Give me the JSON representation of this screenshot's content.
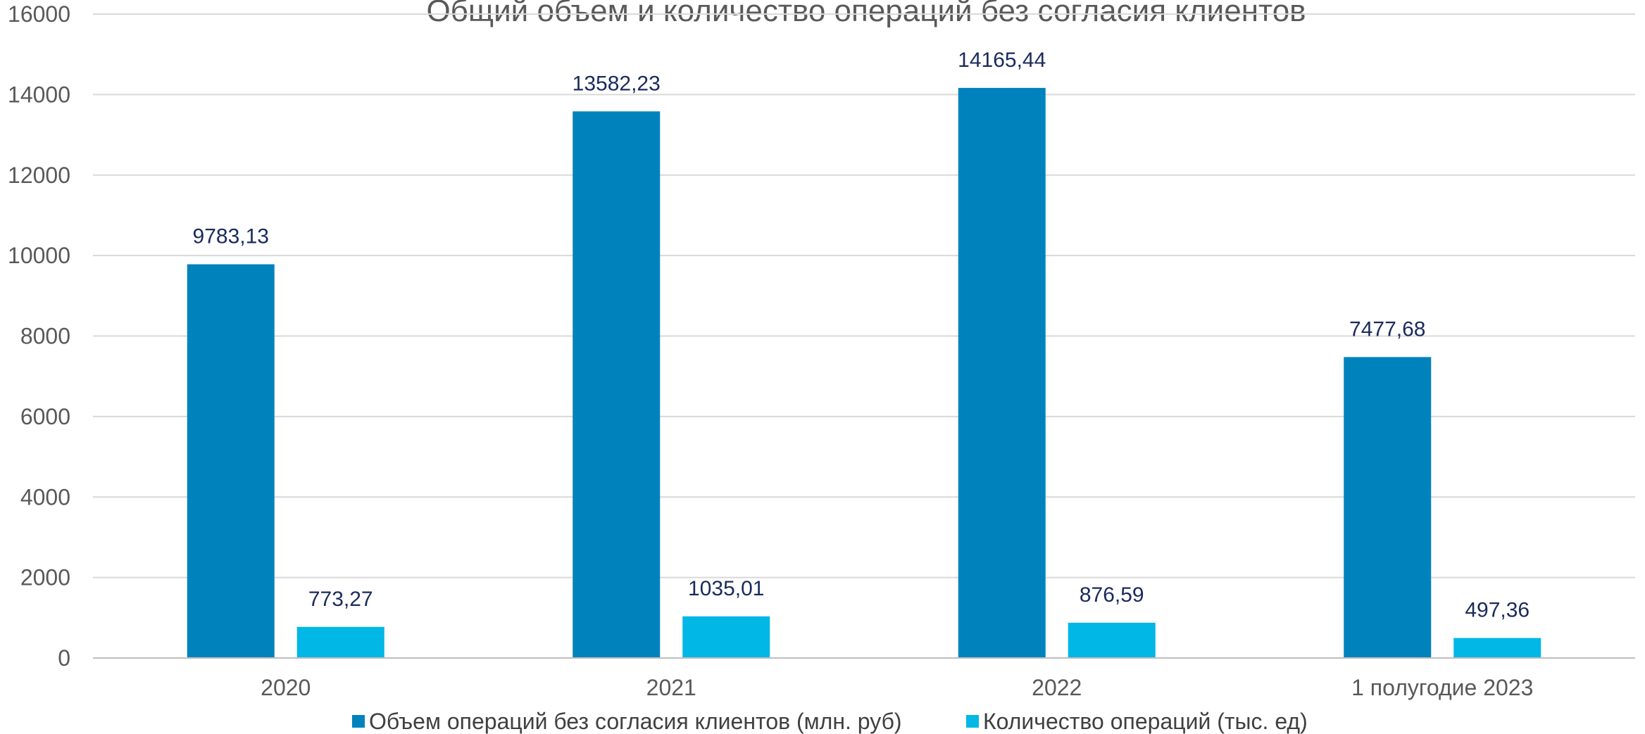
{
  "chart_data": {
    "type": "bar",
    "title": "Общий объем и количество операций без согласия клиентов",
    "categories": [
      "2020",
      "2021",
      "2022",
      "1 полугодие 2023"
    ],
    "series": [
      {
        "name": "Объем операций без согласия клиентов (млн. руб)",
        "color": "#0083bd",
        "values": [
          9783.13,
          13582.23,
          14165.44,
          7477.68
        ],
        "labels": [
          "9783,13",
          "13582,23",
          "14165,44",
          "7477,68"
        ]
      },
      {
        "name": "Количество операций (тыс. ед)",
        "color": "#00b7e6",
        "values": [
          773.27,
          1035.01,
          876.59,
          497.36
        ],
        "labels": [
          "773,27",
          "1035,01",
          "876,59",
          "497,36"
        ]
      }
    ],
    "yticks": [
      "0",
      "2000",
      "4000",
      "6000",
      "8000",
      "10000",
      "12000",
      "14000",
      "16000"
    ],
    "ylim": [
      0,
      16000
    ],
    "grid": true,
    "legend_position": "bottom"
  }
}
